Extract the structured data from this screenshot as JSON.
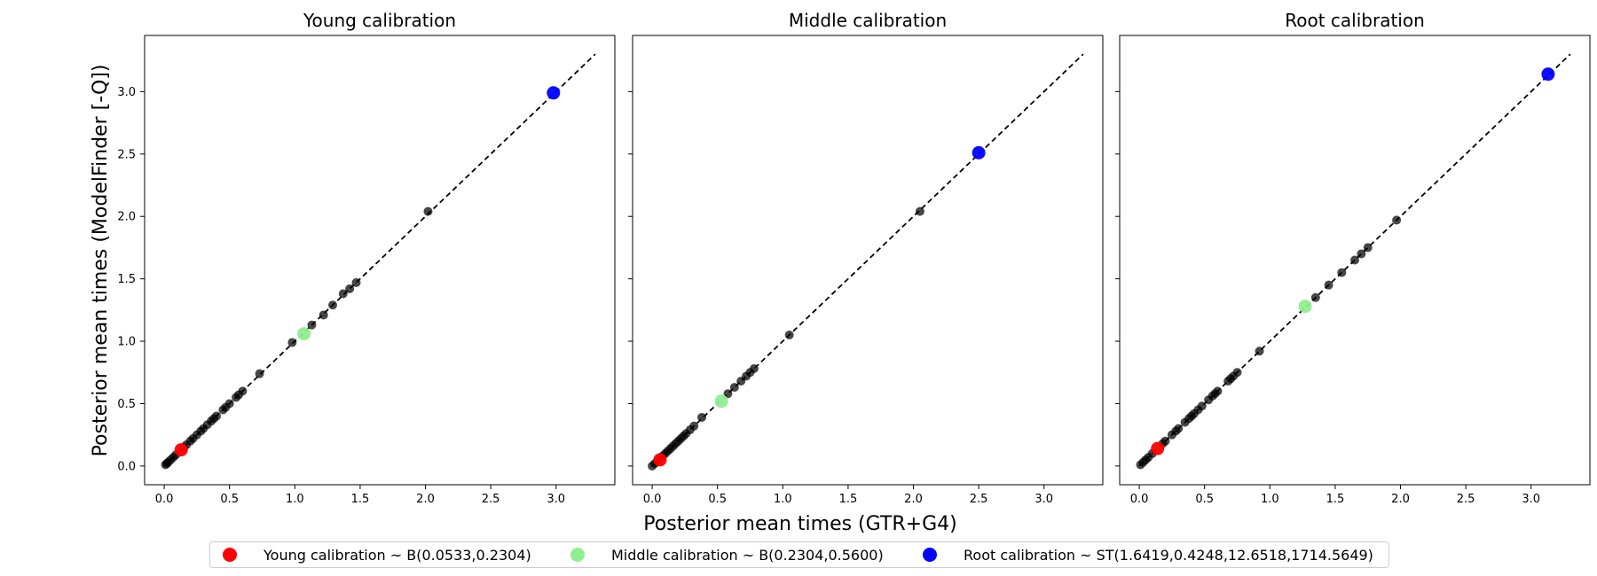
{
  "chart_data": {
    "type": "scatter",
    "shared_xlabel": "Posterior mean times (GTR+G4)",
    "shared_ylabel": "Posterior mean times (ModelFinder [-Q])",
    "panels": [
      {
        "title": "Young calibration",
        "xlim": [
          -0.15,
          3.45
        ],
        "ylim": [
          -0.15,
          3.45
        ],
        "xticks": [
          "0.0",
          "0.5",
          "1.0",
          "1.5",
          "2.0",
          "2.5",
          "3.0"
        ],
        "yticks": [
          "0.0",
          "0.5",
          "1.0",
          "1.5",
          "2.0",
          "2.5",
          "3.0"
        ],
        "points": [
          [
            0.01,
            0.01
          ],
          [
            0.02,
            0.02
          ],
          [
            0.03,
            0.03
          ],
          [
            0.05,
            0.05
          ],
          [
            0.07,
            0.07
          ],
          [
            0.09,
            0.09
          ],
          [
            0.15,
            0.15
          ],
          [
            0.17,
            0.17
          ],
          [
            0.2,
            0.2
          ],
          [
            0.22,
            0.22
          ],
          [
            0.25,
            0.25
          ],
          [
            0.28,
            0.28
          ],
          [
            0.3,
            0.3
          ],
          [
            0.33,
            0.33
          ],
          [
            0.36,
            0.36
          ],
          [
            0.38,
            0.38
          ],
          [
            0.4,
            0.4
          ],
          [
            0.45,
            0.45
          ],
          [
            0.47,
            0.47
          ],
          [
            0.5,
            0.5
          ],
          [
            0.55,
            0.55
          ],
          [
            0.57,
            0.57
          ],
          [
            0.6,
            0.6
          ],
          [
            0.73,
            0.74
          ],
          [
            0.98,
            0.99
          ],
          [
            1.13,
            1.13
          ],
          [
            1.22,
            1.21
          ],
          [
            1.29,
            1.29
          ],
          [
            1.37,
            1.38
          ],
          [
            1.42,
            1.42
          ],
          [
            1.47,
            1.47
          ],
          [
            2.02,
            2.04
          ]
        ],
        "calibrations": {
          "young": [
            0.13,
            0.13
          ],
          "middle": [
            1.07,
            1.06
          ],
          "root": [
            2.98,
            2.99
          ]
        }
      },
      {
        "title": "Middle calibration",
        "xlim": [
          -0.15,
          3.45
        ],
        "ylim": [
          -0.15,
          3.45
        ],
        "xticks": [
          "0.0",
          "0.5",
          "1.0",
          "1.5",
          "2.0",
          "2.5",
          "3.0"
        ],
        "yticks": [],
        "points": [
          [
            0.0,
            0.0
          ],
          [
            0.02,
            0.02
          ],
          [
            0.04,
            0.04
          ],
          [
            0.08,
            0.08
          ],
          [
            0.1,
            0.1
          ],
          [
            0.12,
            0.12
          ],
          [
            0.14,
            0.14
          ],
          [
            0.16,
            0.16
          ],
          [
            0.18,
            0.18
          ],
          [
            0.2,
            0.2
          ],
          [
            0.22,
            0.22
          ],
          [
            0.24,
            0.24
          ],
          [
            0.26,
            0.26
          ],
          [
            0.29,
            0.29
          ],
          [
            0.32,
            0.32
          ],
          [
            0.38,
            0.39
          ],
          [
            0.58,
            0.58
          ],
          [
            0.63,
            0.63
          ],
          [
            0.68,
            0.68
          ],
          [
            0.72,
            0.72
          ],
          [
            0.75,
            0.75
          ],
          [
            0.78,
            0.78
          ],
          [
            1.05,
            1.05
          ],
          [
            2.05,
            2.04
          ]
        ],
        "calibrations": {
          "young": [
            0.06,
            0.05
          ],
          "middle": [
            0.53,
            0.52
          ],
          "root": [
            2.5,
            2.51
          ]
        }
      },
      {
        "title": "Root calibration",
        "xlim": [
          -0.15,
          3.45
        ],
        "ylim": [
          -0.15,
          3.45
        ],
        "xticks": [
          "0.0",
          "0.5",
          "1.0",
          "1.5",
          "2.0",
          "2.5",
          "3.0"
        ],
        "yticks": [],
        "points": [
          [
            0.01,
            0.01
          ],
          [
            0.03,
            0.03
          ],
          [
            0.05,
            0.05
          ],
          [
            0.07,
            0.07
          ],
          [
            0.1,
            0.1
          ],
          [
            0.18,
            0.18
          ],
          [
            0.2,
            0.2
          ],
          [
            0.25,
            0.25
          ],
          [
            0.28,
            0.28
          ],
          [
            0.3,
            0.3
          ],
          [
            0.35,
            0.35
          ],
          [
            0.38,
            0.38
          ],
          [
            0.4,
            0.4
          ],
          [
            0.42,
            0.42
          ],
          [
            0.45,
            0.45
          ],
          [
            0.48,
            0.48
          ],
          [
            0.53,
            0.53
          ],
          [
            0.56,
            0.56
          ],
          [
            0.58,
            0.58
          ],
          [
            0.6,
            0.6
          ],
          [
            0.68,
            0.68
          ],
          [
            0.7,
            0.7
          ],
          [
            0.72,
            0.72
          ],
          [
            0.75,
            0.75
          ],
          [
            0.92,
            0.92
          ],
          [
            1.35,
            1.35
          ],
          [
            1.45,
            1.45
          ],
          [
            1.55,
            1.55
          ],
          [
            1.65,
            1.65
          ],
          [
            1.7,
            1.7
          ],
          [
            1.75,
            1.75
          ],
          [
            1.97,
            1.97
          ]
        ],
        "calibrations": {
          "young": [
            0.14,
            0.14
          ],
          "middle": [
            1.27,
            1.28
          ],
          "root": [
            3.13,
            3.14
          ]
        }
      }
    ],
    "legend": [
      {
        "key": "young",
        "label": "Young calibration ~ B(0.0533,0.2304)",
        "color": "#ff0000"
      },
      {
        "key": "middle",
        "label": "Middle calibration ~ B(0.2304,0.5600)",
        "color": "#90ee90"
      },
      {
        "key": "root",
        "label": "Root calibration ~ ST(1.6419,0.4248,12.6518,1714.5649)",
        "color": "#0000ff"
      }
    ],
    "legend_position": "bottom-center",
    "grid": false
  }
}
